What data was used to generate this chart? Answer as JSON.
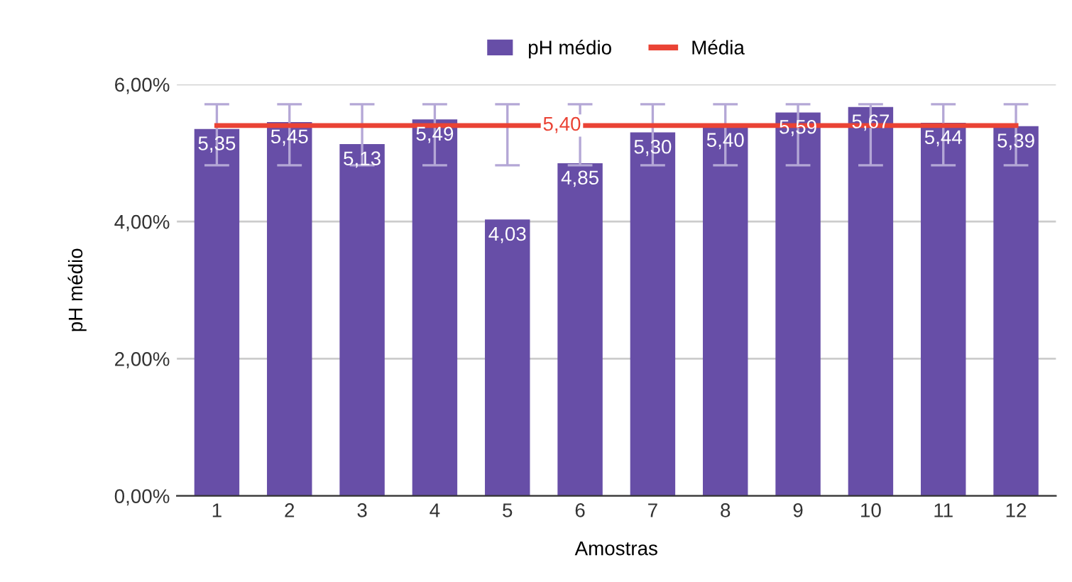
{
  "chart_data": {
    "type": "bar",
    "xlabel": "Amostras",
    "ylabel": "pH médio",
    "categories": [
      "1",
      "2",
      "3",
      "4",
      "5",
      "6",
      "7",
      "8",
      "9",
      "10",
      "11",
      "12"
    ],
    "series": [
      {
        "name": "pH médio",
        "color": "#674ea7",
        "values": [
          5.35,
          5.45,
          5.13,
          5.49,
          4.03,
          4.85,
          5.3,
          5.4,
          5.59,
          5.67,
          5.44,
          5.39
        ],
        "value_labels": [
          "5,35",
          "5,45",
          "5,13",
          "5,49",
          "4,03",
          "4,85",
          "5,30",
          "5,40",
          "5,59",
          "5,67",
          "5,44",
          "5,39"
        ],
        "errors": [
          [
            4.82,
            5.71
          ],
          [
            4.82,
            5.71
          ],
          [
            4.82,
            5.71
          ],
          [
            4.82,
            5.71
          ],
          [
            4.82,
            5.71
          ],
          [
            4.82,
            5.71
          ],
          [
            4.82,
            5.71
          ],
          [
            4.82,
            5.71
          ],
          [
            4.82,
            5.71
          ],
          [
            4.82,
            5.71
          ],
          [
            4.82,
            5.71
          ],
          [
            4.82,
            5.71
          ]
        ]
      },
      {
        "name": "Média",
        "type": "line",
        "color": "#ea4335",
        "values": [
          5.4,
          5.4,
          5.4,
          5.4,
          5.4,
          5.4,
          5.4,
          5.4,
          5.4,
          5.4,
          5.4,
          5.4
        ],
        "value_labels": [
          null,
          null,
          null,
          null,
          null,
          "5,40",
          null,
          null,
          null,
          null,
          null,
          null
        ]
      }
    ],
    "ylim": [
      0,
      6
    ],
    "yticks": [
      {
        "value": 0,
        "label": "0,00%"
      },
      {
        "value": 2,
        "label": "2,00%"
      },
      {
        "value": 4,
        "label": "4,00%"
      },
      {
        "value": 6,
        "label": "6,00%"
      }
    ],
    "grid": "y",
    "legend": "top"
  }
}
